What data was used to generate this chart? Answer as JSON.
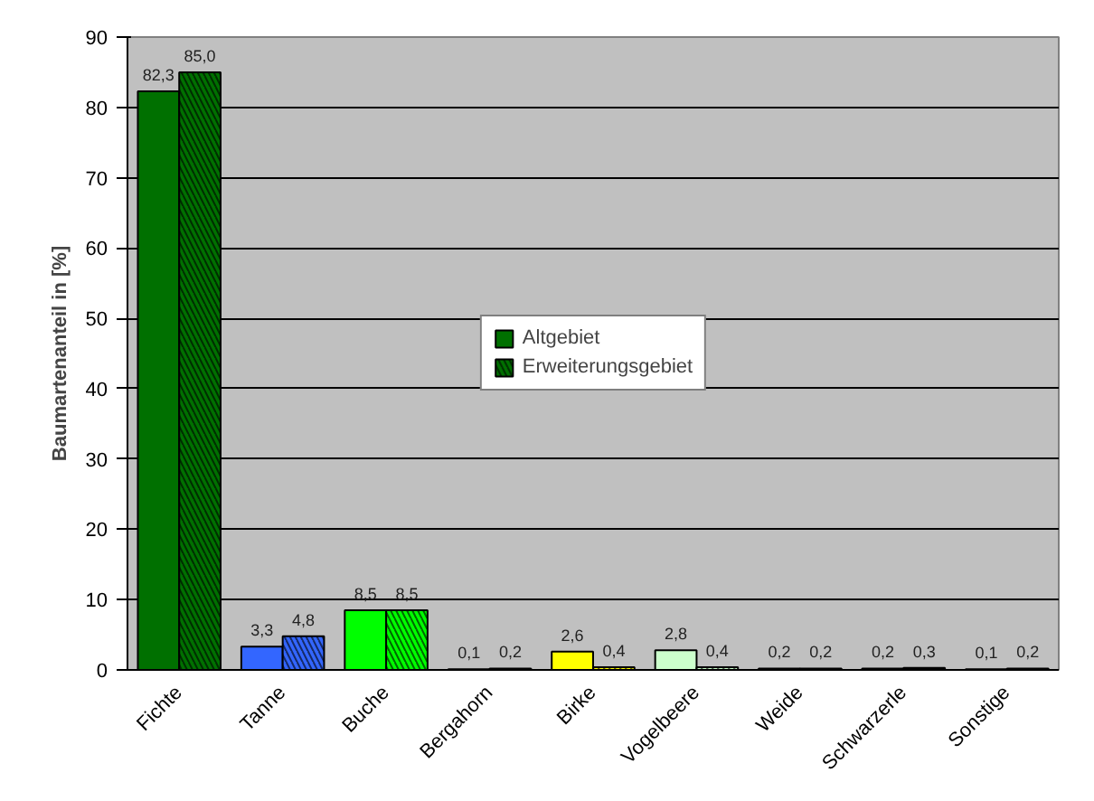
{
  "chart_data": {
    "type": "bar",
    "ylabel": "Baumartenanteil in [%]",
    "categories": [
      "Fichte",
      "Tanne",
      "Buche",
      "Bergahorn",
      "Birke",
      "Vogelbeere",
      "Weide",
      "Schwarzerle",
      "Sonstige"
    ],
    "series": [
      {
        "name": "Altgebiet",
        "colors": [
          "#007000",
          "#3366ff",
          "#00ff00",
          "#000000",
          "#ffff00",
          "#ccffcc",
          "#000000",
          "#000000",
          "#000000"
        ],
        "values": [
          82.3,
          3.3,
          8.5,
          0.1,
          2.6,
          2.8,
          0.2,
          0.2,
          0.1
        ],
        "value_labels": [
          "82,3",
          "3,3",
          "8,5",
          "0,1",
          "2,6",
          "2,8",
          "0,2",
          "0,2",
          "0,1"
        ]
      },
      {
        "name": "Erweiterungsgebiet",
        "colors": [
          "#007000",
          "#3366ff",
          "#00ff00",
          "#000000",
          "#ffff00",
          "#ccffcc",
          "#000000",
          "#000000",
          "#000000"
        ],
        "values": [
          85.0,
          4.8,
          8.5,
          0.2,
          0.4,
          0.4,
          0.2,
          0.3,
          0.2
        ],
        "value_labels": [
          "85,0",
          "4,8",
          "8,5",
          "0,2",
          "0,4",
          "0,4",
          "0,2",
          "0,3",
          "0,2"
        ]
      }
    ],
    "ylim": [
      0,
      90
    ],
    "yticks": [
      0,
      10,
      20,
      30,
      40,
      50,
      60,
      70,
      80,
      90
    ],
    "grid": "y",
    "legend": "center"
  }
}
